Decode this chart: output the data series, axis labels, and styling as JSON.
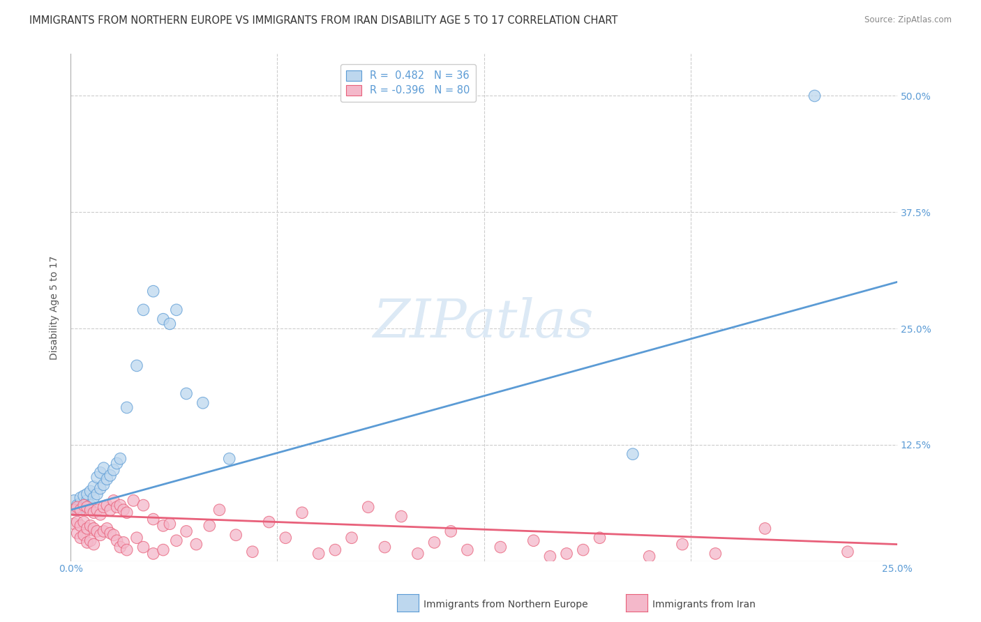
{
  "title": "IMMIGRANTS FROM NORTHERN EUROPE VS IMMIGRANTS FROM IRAN DISABILITY AGE 5 TO 17 CORRELATION CHART",
  "source": "Source: ZipAtlas.com",
  "ylabel_label": "Disability Age 5 to 17",
  "blue_scatter": [
    [
      0.001,
      0.065
    ],
    [
      0.002,
      0.06
    ],
    [
      0.002,
      0.055
    ],
    [
      0.003,
      0.062
    ],
    [
      0.003,
      0.068
    ],
    [
      0.004,
      0.058
    ],
    [
      0.004,
      0.07
    ],
    [
      0.005,
      0.065
    ],
    [
      0.005,
      0.072
    ],
    [
      0.006,
      0.06
    ],
    [
      0.006,
      0.075
    ],
    [
      0.007,
      0.068
    ],
    [
      0.007,
      0.08
    ],
    [
      0.008,
      0.072
    ],
    [
      0.008,
      0.09
    ],
    [
      0.009,
      0.078
    ],
    [
      0.009,
      0.095
    ],
    [
      0.01,
      0.082
    ],
    [
      0.01,
      0.1
    ],
    [
      0.011,
      0.088
    ],
    [
      0.012,
      0.092
    ],
    [
      0.013,
      0.098
    ],
    [
      0.014,
      0.105
    ],
    [
      0.015,
      0.11
    ],
    [
      0.017,
      0.165
    ],
    [
      0.02,
      0.21
    ],
    [
      0.022,
      0.27
    ],
    [
      0.025,
      0.29
    ],
    [
      0.028,
      0.26
    ],
    [
      0.03,
      0.255
    ],
    [
      0.032,
      0.27
    ],
    [
      0.035,
      0.18
    ],
    [
      0.04,
      0.17
    ],
    [
      0.048,
      0.11
    ],
    [
      0.17,
      0.115
    ],
    [
      0.225,
      0.5
    ]
  ],
  "pink_scatter": [
    [
      0.001,
      0.055
    ],
    [
      0.001,
      0.04
    ],
    [
      0.002,
      0.058
    ],
    [
      0.002,
      0.042
    ],
    [
      0.002,
      0.03
    ],
    [
      0.003,
      0.055
    ],
    [
      0.003,
      0.038
    ],
    [
      0.003,
      0.025
    ],
    [
      0.004,
      0.06
    ],
    [
      0.004,
      0.042
    ],
    [
      0.004,
      0.028
    ],
    [
      0.005,
      0.058
    ],
    [
      0.005,
      0.035
    ],
    [
      0.005,
      0.02
    ],
    [
      0.006,
      0.055
    ],
    [
      0.006,
      0.038
    ],
    [
      0.006,
      0.022
    ],
    [
      0.007,
      0.052
    ],
    [
      0.007,
      0.035
    ],
    [
      0.007,
      0.018
    ],
    [
      0.008,
      0.055
    ],
    [
      0.008,
      0.032
    ],
    [
      0.009,
      0.05
    ],
    [
      0.009,
      0.028
    ],
    [
      0.01,
      0.058
    ],
    [
      0.01,
      0.032
    ],
    [
      0.011,
      0.06
    ],
    [
      0.011,
      0.035
    ],
    [
      0.012,
      0.055
    ],
    [
      0.012,
      0.03
    ],
    [
      0.013,
      0.065
    ],
    [
      0.013,
      0.028
    ],
    [
      0.014,
      0.058
    ],
    [
      0.014,
      0.022
    ],
    [
      0.015,
      0.06
    ],
    [
      0.015,
      0.015
    ],
    [
      0.016,
      0.055
    ],
    [
      0.016,
      0.02
    ],
    [
      0.017,
      0.052
    ],
    [
      0.017,
      0.012
    ],
    [
      0.019,
      0.065
    ],
    [
      0.02,
      0.025
    ],
    [
      0.022,
      0.06
    ],
    [
      0.022,
      0.015
    ],
    [
      0.025,
      0.045
    ],
    [
      0.025,
      0.008
    ],
    [
      0.028,
      0.038
    ],
    [
      0.028,
      0.012
    ],
    [
      0.03,
      0.04
    ],
    [
      0.032,
      0.022
    ],
    [
      0.035,
      0.032
    ],
    [
      0.038,
      0.018
    ],
    [
      0.042,
      0.038
    ],
    [
      0.045,
      0.055
    ],
    [
      0.05,
      0.028
    ],
    [
      0.055,
      0.01
    ],
    [
      0.06,
      0.042
    ],
    [
      0.065,
      0.025
    ],
    [
      0.07,
      0.052
    ],
    [
      0.075,
      0.008
    ],
    [
      0.08,
      0.012
    ],
    [
      0.085,
      0.025
    ],
    [
      0.09,
      0.058
    ],
    [
      0.095,
      0.015
    ],
    [
      0.1,
      0.048
    ],
    [
      0.105,
      0.008
    ],
    [
      0.11,
      0.02
    ],
    [
      0.115,
      0.032
    ],
    [
      0.12,
      0.012
    ],
    [
      0.13,
      0.015
    ],
    [
      0.14,
      0.022
    ],
    [
      0.145,
      0.005
    ],
    [
      0.15,
      0.008
    ],
    [
      0.155,
      0.012
    ],
    [
      0.16,
      0.025
    ],
    [
      0.175,
      0.005
    ],
    [
      0.185,
      0.018
    ],
    [
      0.195,
      0.008
    ],
    [
      0.21,
      0.035
    ],
    [
      0.235,
      0.01
    ]
  ],
  "blue_line_x": [
    0.0,
    0.25
  ],
  "blue_line_y": [
    0.055,
    0.3
  ],
  "pink_line_x": [
    0.0,
    0.25
  ],
  "pink_line_y": [
    0.05,
    0.018
  ],
  "xlim": [
    0.0,
    0.25
  ],
  "ylim": [
    0.0,
    0.545
  ],
  "yticks": [
    0.125,
    0.25,
    0.375,
    0.5
  ],
  "yticklabels": [
    "12.5%",
    "25.0%",
    "37.5%",
    "50.0%"
  ],
  "xticks": [
    0.0,
    0.25
  ],
  "xticklabels": [
    "0.0%",
    "25.0%"
  ],
  "blue_color": "#5b9bd5",
  "pink_color": "#e8607a",
  "blue_fill": "#bdd7ee",
  "pink_fill": "#f4b8ca",
  "grid_color": "#cccccc",
  "background_color": "#ffffff",
  "title_fontsize": 10.5,
  "axis_label_fontsize": 10,
  "tick_fontsize": 10,
  "legend_blue_label": "R =  0.482   N = 36",
  "legend_pink_label": "R = -0.396   N = 80",
  "watermark": "ZIPatlas",
  "watermark_color": "#dce9f5"
}
